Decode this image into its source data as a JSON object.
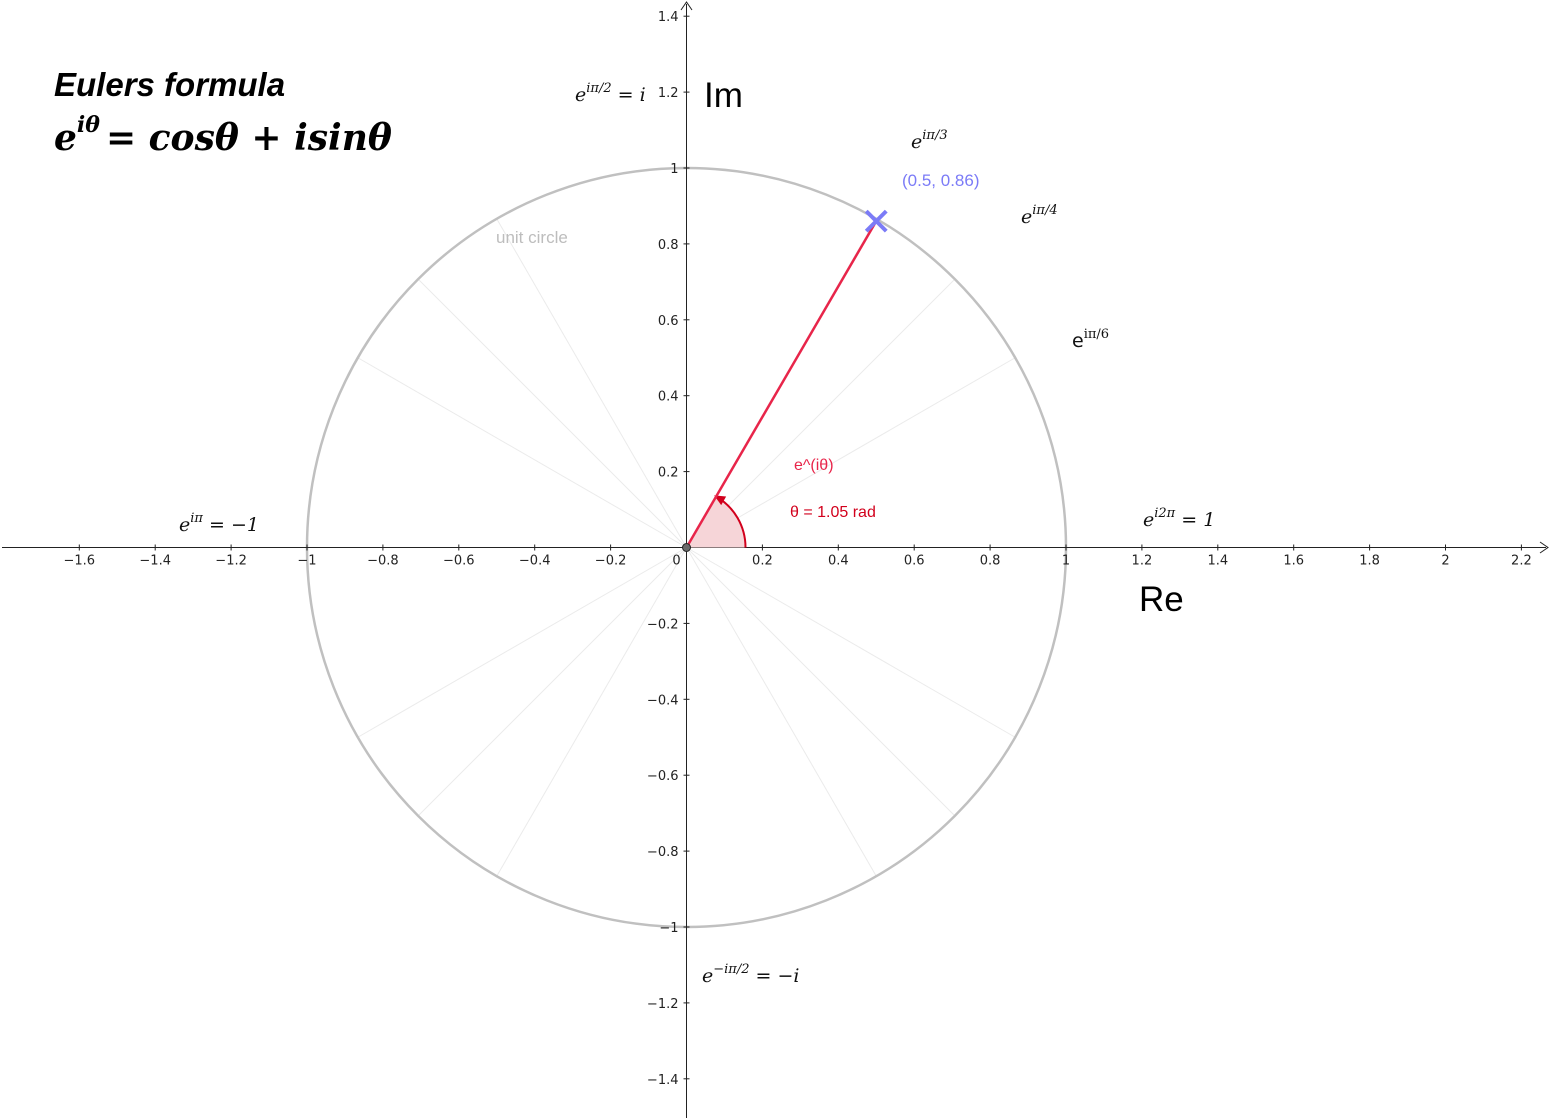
{
  "title": "Eulers formula",
  "formula": {
    "base": "e",
    "exponent": "iθ",
    "rhs": "= cosθ + isinθ"
  },
  "axes": {
    "real_label": "Re",
    "imag_label": "Im",
    "x_range": [
      -1.8,
      2.3
    ],
    "y_range": [
      -1.5,
      1.42
    ],
    "x_ticks": [
      "−1.6",
      "−1.4",
      "−1.2",
      "−1",
      "−0.8",
      "−0.6",
      "−0.4",
      "−0.2",
      "0",
      "0.2",
      "0.4",
      "0.6",
      "0.8",
      "1",
      "1.2",
      "1.4",
      "1.6",
      "1.8",
      "2",
      "2.2"
    ],
    "x_tick_values": [
      -1.6,
      -1.4,
      -1.2,
      -1,
      -0.8,
      -0.6,
      -0.4,
      -0.2,
      0,
      0.2,
      0.4,
      0.6,
      0.8,
      1,
      1.2,
      1.4,
      1.6,
      1.8,
      2,
      2.2
    ],
    "y_ticks": [
      "1.4",
      "1.2",
      "1",
      "0.8",
      "0.6",
      "0.4",
      "0.2",
      "−0.2",
      "−0.4",
      "−0.6",
      "−0.8",
      "−1",
      "−1.2",
      "−1.4"
    ],
    "y_tick_values": [
      1.4,
      1.2,
      1,
      0.8,
      0.6,
      0.4,
      0.2,
      -0.2,
      -0.4,
      -0.6,
      -0.8,
      -1,
      -1.2,
      -1.4
    ]
  },
  "unit_circle_label": "unit circle",
  "point": {
    "label": "(0.5, 0.86)",
    "x": 0.5,
    "y": 0.86,
    "color": "#7b7bf7"
  },
  "vector": {
    "label": "e^(iθ)",
    "color": "#e8254a"
  },
  "angle": {
    "label": "θ = 1.05 rad",
    "value_rad": 1.05,
    "color": "#d2001c"
  },
  "colors": {
    "circle": "#c0c0c0",
    "spokes": "#ebebeb",
    "angle_fill": "#f6d5d8",
    "unit_label": "#bdbdbd"
  },
  "spoke_angles_deg": [
    30,
    45,
    60,
    120,
    135,
    150,
    210,
    225,
    240,
    300,
    315,
    330
  ],
  "annotations": {
    "top": {
      "base": "e",
      "sup": "iπ/2",
      "rest": " = i"
    },
    "bottom": {
      "base": "e",
      "sup": "−iπ/2",
      "rest": " = −i"
    },
    "left": {
      "base": "e",
      "sup": "iπ",
      "rest": " = −1"
    },
    "right": {
      "base": "e",
      "sup": "i2π",
      "rest": " = 1"
    },
    "pi3": {
      "base": "e",
      "sup": "iπ/3"
    },
    "pi4": {
      "base": "e",
      "sup": "iπ/4"
    },
    "pi6": {
      "base": "e",
      "sup": "iπ/6"
    }
  }
}
